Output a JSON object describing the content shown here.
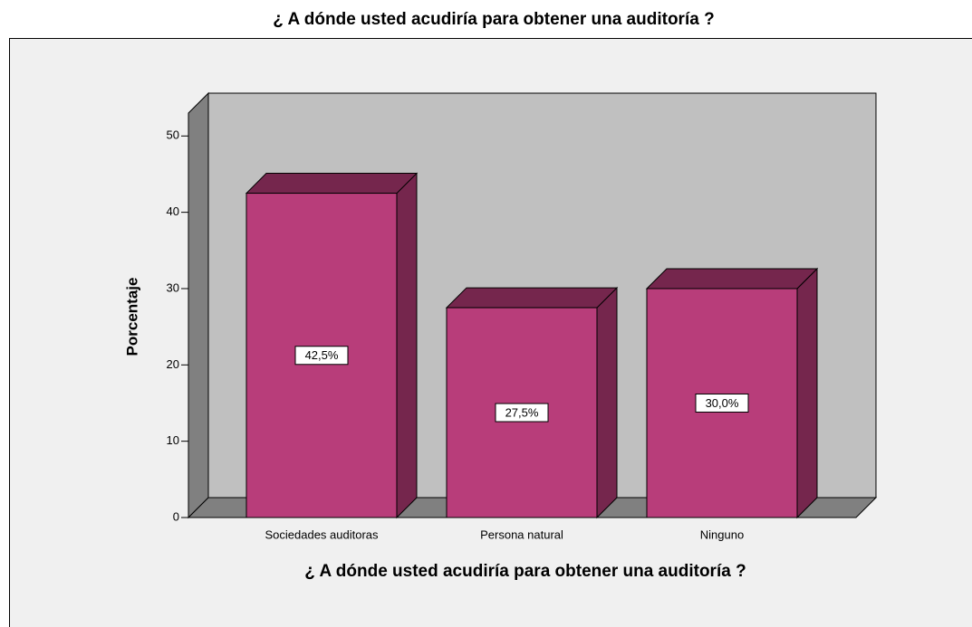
{
  "chart_data": {
    "type": "bar3d",
    "title": "¿ A dónde usted acudiría para obtener una auditoría ?",
    "xlabel": "¿ A dónde usted acudiría para obtener una auditoría ?",
    "ylabel": "Porcentaje",
    "categories": [
      "Sociedades auditoras",
      "Persona natural",
      "Ninguno"
    ],
    "values": [
      42.5,
      27.5,
      30.0
    ],
    "value_labels": [
      "42,5%",
      "27,5%",
      "30,0%"
    ],
    "color": "#b83d7a",
    "ylim": [
      0,
      53
    ],
    "yticks": [
      0,
      10,
      20,
      30,
      40,
      50
    ]
  }
}
